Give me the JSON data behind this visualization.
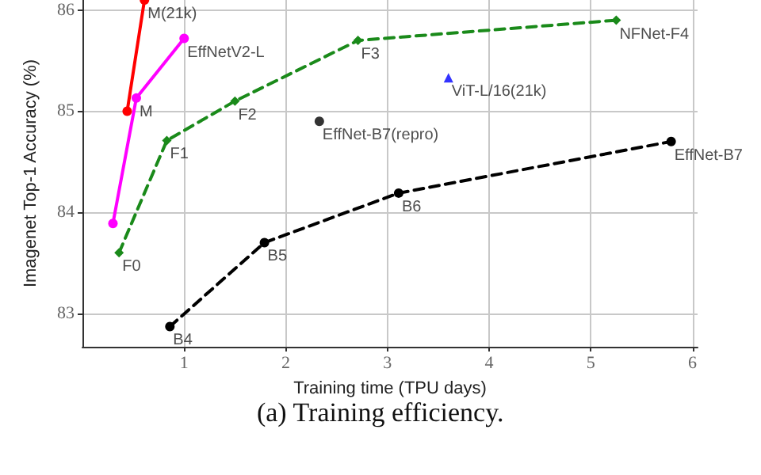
{
  "chart_data": {
    "type": "line",
    "xlabel": "Training time (TPU days)",
    "ylabel": "Imagenet Top-1 Accuracy (%)",
    "xlim": [
      0,
      6.05
    ],
    "ylim": [
      82.67,
      86.1
    ],
    "xticks": [
      1,
      2,
      3,
      4,
      5,
      6
    ],
    "yticks": [
      83,
      84,
      85,
      86
    ],
    "grid": true,
    "series": [
      {
        "color": "#ff0000",
        "x": [
          0.44,
          0.61
        ],
        "values": [
          85.0,
          86.1
        ],
        "marker": "circle",
        "line_style": "solid"
      },
      {
        "color": "#ff00ff",
        "x": [
          0.3,
          0.53,
          1.0
        ],
        "values": [
          83.89,
          85.13,
          85.72
        ],
        "marker": "circle",
        "line_style": "solid"
      },
      {
        "color": "#1a8a1a",
        "x": [
          0.36,
          0.83,
          1.5,
          2.71,
          5.25
        ],
        "values": [
          83.6,
          84.71,
          85.1,
          85.7,
          85.9
        ],
        "marker": "diamond",
        "line_style": "dashed"
      },
      {
        "color": "#000000",
        "x": [
          0.86,
          1.79,
          3.11,
          5.79
        ],
        "values": [
          82.87,
          83.7,
          84.19,
          84.7
        ],
        "marker": "circle",
        "line_style": "dashed"
      },
      {
        "type": "scatter",
        "color": "#000000",
        "x": [
          2.33
        ],
        "values": [
          84.9
        ],
        "marker": "circle"
      },
      {
        "type": "scatter",
        "color": "#0000ff",
        "x": [
          3.6
        ],
        "values": [
          85.33
        ],
        "marker": "triangle"
      }
    ],
    "annotations": [
      {
        "text": "M(21k)",
        "x": 0.61,
        "y": 86.1
      },
      {
        "text": "EffNetV2-L",
        "x": 1.0,
        "y": 85.72
      },
      {
        "text": "M",
        "x": 0.53,
        "y": 85.13
      },
      {
        "text": "F0",
        "x": 0.36,
        "y": 83.6
      },
      {
        "text": "F1",
        "x": 0.83,
        "y": 84.71
      },
      {
        "text": "F2",
        "x": 1.5,
        "y": 85.1
      },
      {
        "text": "F3",
        "x": 2.71,
        "y": 85.7
      },
      {
        "text": "NFNet-F4",
        "x": 5.25,
        "y": 85.9
      },
      {
        "text": "ViT-L/16(21k)",
        "x": 3.6,
        "y": 85.33
      },
      {
        "text": "EffNet-B7(repro)",
        "x": 2.33,
        "y": 84.9
      },
      {
        "text": "B4",
        "x": 0.86,
        "y": 82.87
      },
      {
        "text": "B5",
        "x": 1.79,
        "y": 83.7
      },
      {
        "text": "B6",
        "x": 3.11,
        "y": 84.19
      },
      {
        "text": "EffNet-B7",
        "x": 5.79,
        "y": 84.7
      },
      "(a) Training efficiency."
    ]
  }
}
